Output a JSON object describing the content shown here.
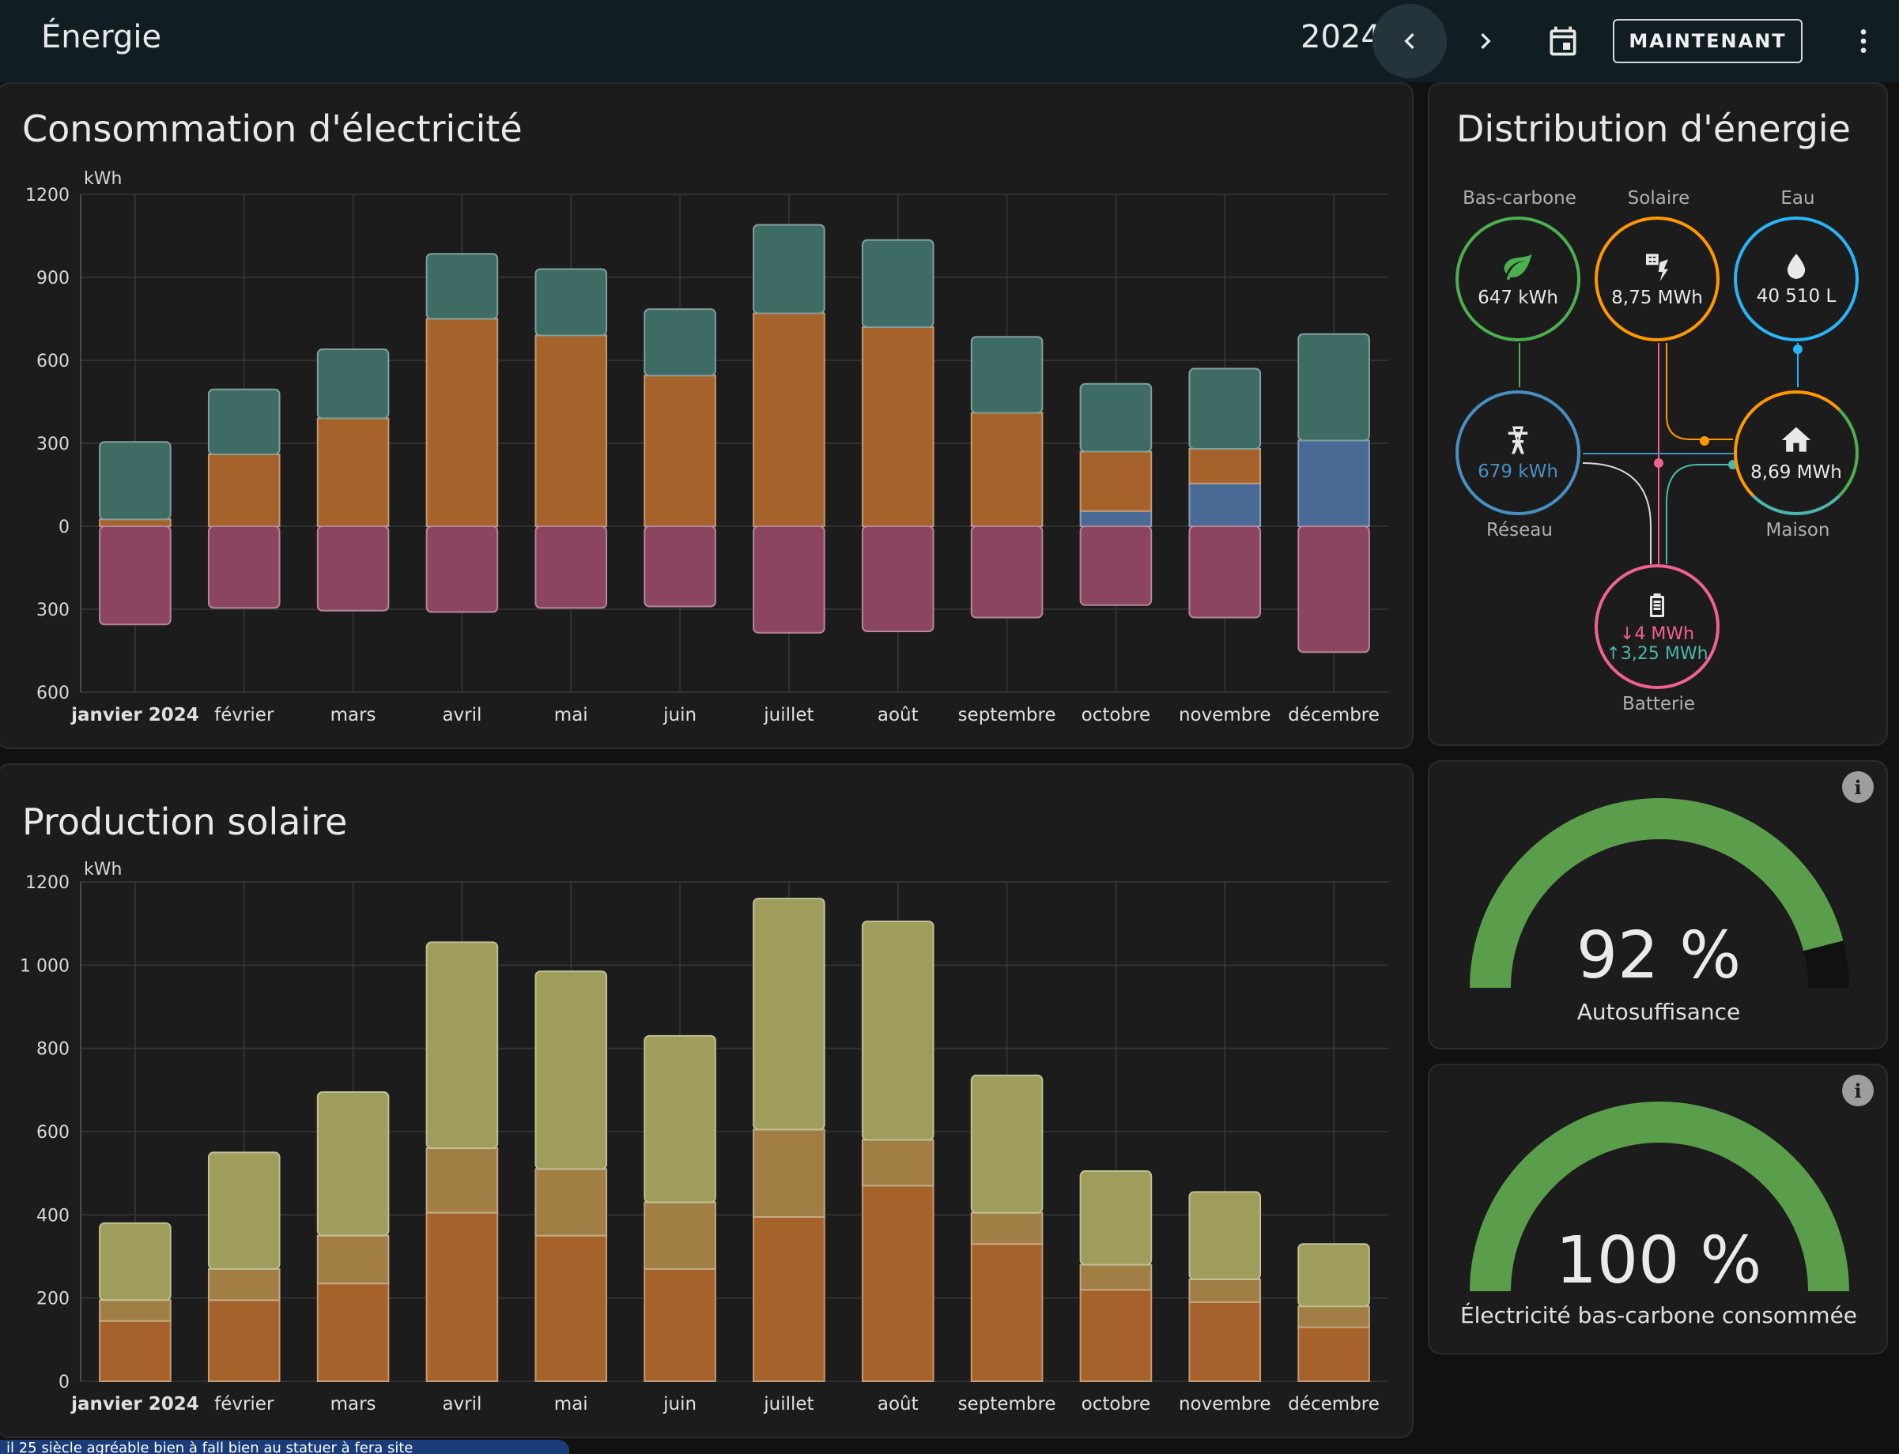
{
  "topbar": {
    "title": "Énergie",
    "year": "2024",
    "prev_icon": "chevron-left-icon",
    "next_icon": "chevron-right-icon",
    "calendar_icon": "calendar-icon",
    "now_label": "MAINTENANT",
    "more_icon": "dots-vertical-icon"
  },
  "consumption_card": {
    "title": "Consommation d'électricité",
    "unit": "kWh"
  },
  "solar_card": {
    "title": "Production solaire",
    "unit": "kWh"
  },
  "distribution": {
    "title": "Distribution d'énergie",
    "low_carbon": {
      "label": "Bas-carbone",
      "value": "647 kWh",
      "icon": "leaf-icon",
      "color": "#4caf50"
    },
    "solar": {
      "label": "Solaire",
      "value": "8,75 MWh",
      "icon": "solar-panel-icon",
      "color": "#ff9800"
    },
    "water": {
      "label": "Eau",
      "value": "40 510 L",
      "icon": "water-drop-icon",
      "color": "#29b6f6"
    },
    "grid": {
      "label": "Réseau",
      "value": "679 kWh",
      "icon": "transmission-tower-icon",
      "color": "#488fc2"
    },
    "home": {
      "label": "Maison",
      "value": "8,69 MWh",
      "icon": "home-icon",
      "color": "#ff9800"
    },
    "battery": {
      "label": "Batterie",
      "in_value": "4 MWh",
      "out_value": "3,25 MWh",
      "icon": "battery-icon",
      "color": "#f06292",
      "in_color": "#f06292",
      "out_color": "#4db6ac"
    }
  },
  "gauges": [
    {
      "value": "92 %",
      "label": "Autosuffisance",
      "fraction": 0.92
    },
    {
      "value": "100 %",
      "label": "Électricité bas-carbone consommée",
      "fraction": 1.0
    }
  ],
  "toast": {
    "text": "il 25 siècle agréable bien à fall bien au statuer à fera site"
  },
  "chart_data": [
    {
      "type": "bar",
      "title": "Consommation d'électricité",
      "ylabel": "kWh",
      "categories": [
        "janvier 2024",
        "février",
        "mars",
        "avril",
        "mai",
        "juin",
        "juillet",
        "août",
        "septembre",
        "octobre",
        "novembre",
        "décembre"
      ],
      "ylim": [
        -600,
        1200
      ],
      "yticks": [
        1200,
        900,
        600,
        300,
        0,
        -300,
        -600
      ],
      "ytick_labels": [
        "1200",
        "900",
        "600",
        "300",
        "0",
        "300",
        "600"
      ],
      "series": [
        {
          "key": "grid",
          "color": "#4a6a96",
          "values": [
            0,
            0,
            0,
            0,
            0,
            0,
            0,
            0,
            0,
            55,
            155,
            310
          ]
        },
        {
          "key": "solar",
          "color": "#a5622a",
          "values": [
            25,
            260,
            390,
            750,
            690,
            545,
            770,
            720,
            410,
            215,
            125,
            0
          ]
        },
        {
          "key": "battery",
          "color": "#3f6b65",
          "values": [
            280,
            235,
            250,
            235,
            240,
            240,
            320,
            315,
            275,
            245,
            290,
            385
          ]
        },
        {
          "key": "battery_charge",
          "color": "#8c4561",
          "values": [
            -355,
            -295,
            -305,
            -310,
            -295,
            -290,
            -385,
            -380,
            -330,
            -285,
            -330,
            -455
          ]
        }
      ]
    },
    {
      "type": "bar",
      "title": "Production solaire",
      "ylabel": "kWh",
      "categories": [
        "janvier 2024",
        "février",
        "mars",
        "avril",
        "mai",
        "juin",
        "juillet",
        "août",
        "septembre",
        "octobre",
        "novembre",
        "décembre"
      ],
      "ylim": [
        0,
        1200
      ],
      "yticks": [
        1200,
        1000,
        800,
        600,
        400,
        200,
        0
      ],
      "ytick_labels": [
        "1200",
        "1 000",
        "800",
        "600",
        "400",
        "200",
        "0"
      ],
      "series": [
        {
          "key": "array_1",
          "color": "#a5622a",
          "values": [
            145,
            195,
            235,
            405,
            350,
            270,
            395,
            470,
            330,
            220,
            190,
            130
          ]
        },
        {
          "key": "array_2",
          "color": "#a17e43",
          "values": [
            50,
            75,
            115,
            155,
            160,
            160,
            210,
            110,
            75,
            60,
            55,
            50
          ]
        },
        {
          "key": "array_3",
          "color": "#9e9d5c",
          "values": [
            185,
            280,
            345,
            495,
            475,
            400,
            555,
            525,
            330,
            225,
            210,
            150
          ]
        }
      ]
    }
  ]
}
